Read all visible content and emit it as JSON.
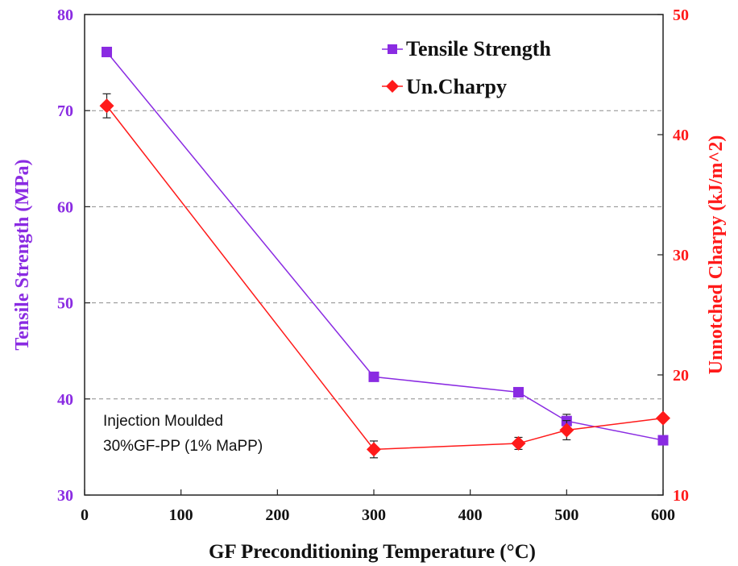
{
  "chart_data": {
    "type": "line",
    "x": [
      23,
      300,
      450,
      500,
      600
    ],
    "xlabel": "GF Preconditioning  Temperature (°C)",
    "ylabel": "Tensile Strength (MPa)",
    "y2label": "Unnotched Charpy (kJ/m^2)",
    "xlim": [
      0,
      600
    ],
    "ylim": [
      30,
      80
    ],
    "y2lim": [
      10,
      50
    ],
    "xticks": [
      "0",
      "100",
      "200",
      "300",
      "400",
      "500",
      "600"
    ],
    "yticks": [
      "30",
      "40",
      "50",
      "60",
      "70",
      "80"
    ],
    "y2ticks": [
      "10",
      "20",
      "30",
      "40",
      "50"
    ],
    "grid": "horizontal-dashed",
    "legend_position": "top-right",
    "series": [
      {
        "name": "Tensile Strength",
        "axis": "left",
        "marker": "square",
        "color": "#8a2be2",
        "values": [
          76.1,
          42.3,
          40.7,
          37.7,
          35.7
        ],
        "errors": [
          0,
          0.4,
          0,
          0.7,
          0
        ]
      },
      {
        "name": "Un.Charpy",
        "axis": "right",
        "marker": "diamond",
        "color": "#ff1a1a",
        "values": [
          42.4,
          13.8,
          14.3,
          15.4,
          16.4
        ],
        "errors": [
          1.0,
          0.7,
          0.5,
          0.8,
          0
        ]
      }
    ],
    "annotations": [
      "Injection Moulded",
      "30%GF-PP  (1% MaPP)"
    ]
  }
}
